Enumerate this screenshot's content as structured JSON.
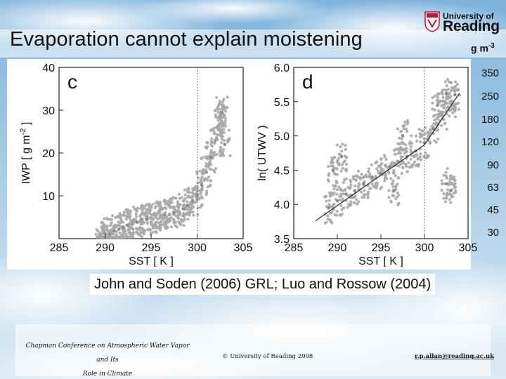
{
  "slide": {
    "title": "Evaporation cannot explain moistening",
    "logo": {
      "line1": "University of",
      "line2": "Reading",
      "brand_red": "#c8102e"
    },
    "legend_scale": {
      "unit": "g m",
      "unit_exp": "-3",
      "values": [
        "350",
        "250",
        "180",
        "120",
        "90",
        "63",
        "45",
        "30"
      ]
    },
    "citation": "John and Soden (2006) GRL; Luo and Rossow (2004)",
    "footer": {
      "conference_line1": "Chapman Conference on Atmospheric Water Vapor and Its",
      "conference_line2": "Role in Climate",
      "copyright": "© University of Reading 2008",
      "email": "r.p.allan@reading.ac.uk"
    },
    "colors": {
      "sky": "#a9cce6",
      "scatter": "#a9a9a9",
      "line": "#333333"
    }
  },
  "chart_data": [
    {
      "type": "scatter",
      "panel_label": "c",
      "xlabel": "SST [ K ]",
      "ylabel": "IWP [ g m",
      "ylabel_exp": "-2",
      "ylabel_end": " ]",
      "xlim": [
        285,
        305
      ],
      "ylim": [
        0,
        40
      ],
      "xticks": [
        "285",
        "290",
        "295",
        "300",
        "305"
      ],
      "yticks": [
        "10",
        "20",
        "30",
        "40"
      ],
      "threshold_x": 300,
      "points": [
        [
          289.5,
          0.8
        ],
        [
          290.0,
          1.2
        ],
        [
          290.5,
          1.0
        ],
        [
          291.0,
          1.8
        ],
        [
          291.5,
          2.2
        ],
        [
          292.0,
          2.6
        ],
        [
          292.5,
          3.2
        ],
        [
          293.0,
          3.5
        ],
        [
          293.5,
          3.8
        ],
        [
          294.0,
          4.2
        ],
        [
          294.5,
          4.6
        ],
        [
          295.0,
          4.8
        ],
        [
          295.5,
          5.0
        ],
        [
          296.0,
          5.2
        ],
        [
          296.5,
          5.4
        ],
        [
          297.0,
          5.6
        ],
        [
          297.5,
          6.0
        ],
        [
          298.0,
          6.4
        ],
        [
          298.5,
          7.0
        ],
        [
          299.0,
          7.8
        ],
        [
          299.5,
          8.8
        ],
        [
          300.0,
          10.0
        ],
        [
          300.5,
          12.5
        ],
        [
          301.0,
          15.5
        ],
        [
          301.5,
          19.0
        ],
        [
          302.0,
          23.0
        ],
        [
          302.3,
          26.0
        ],
        [
          302.5,
          28.5
        ],
        [
          302.7,
          29.5
        ],
        [
          303.0,
          22.0
        ]
      ]
    },
    {
      "type": "scatter",
      "panel_label": "d",
      "xlabel": "SST [ K ]",
      "ylabel": "ln( UTWV )",
      "xlim": [
        285,
        305
      ],
      "ylim": [
        3.5,
        6.0
      ],
      "xticks": [
        "285",
        "290",
        "295",
        "300",
        "305"
      ],
      "yticks": [
        "3.5",
        "4.0",
        "4.5",
        "5.0",
        "5.5",
        "6.0"
      ],
      "threshold_x": 300,
      "fit_line": [
        [
          287.5,
          3.76
        ],
        [
          300.0,
          4.87
        ],
        [
          304.0,
          5.62
        ]
      ],
      "points": [
        [
          289.0,
          3.95
        ],
        [
          290.0,
          4.05
        ],
        [
          291.0,
          4.15
        ],
        [
          292.0,
          4.2
        ],
        [
          293.0,
          4.3
        ],
        [
          294.0,
          4.4
        ],
        [
          295.0,
          4.45
        ],
        [
          296.0,
          4.55
        ],
        [
          297.0,
          4.62
        ],
        [
          298.0,
          4.7
        ],
        [
          299.0,
          4.78
        ],
        [
          300.0,
          4.9
        ],
        [
          301.0,
          5.1
        ],
        [
          302.0,
          5.3
        ],
        [
          303.0,
          5.5
        ],
        [
          303.5,
          5.6
        ],
        [
          302.5,
          4.3
        ],
        [
          303.0,
          4.2
        ],
        [
          289.5,
          4.5
        ],
        [
          290.5,
          4.7
        ],
        [
          296.5,
          4.2
        ],
        [
          297.5,
          5.0
        ],
        [
          301.5,
          5.45
        ],
        [
          302.5,
          5.62
        ]
      ]
    }
  ]
}
